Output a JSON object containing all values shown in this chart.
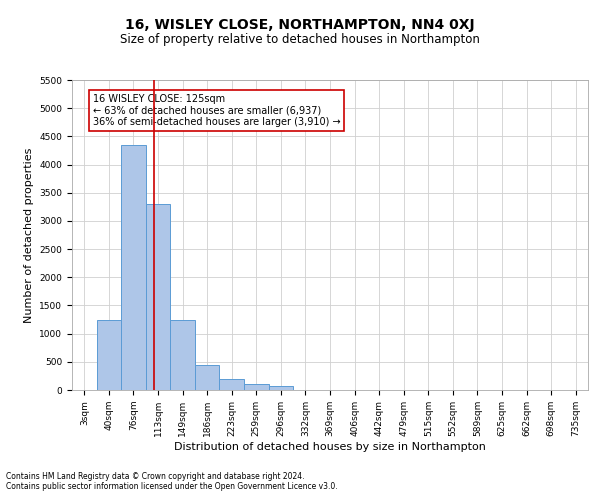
{
  "title": "16, WISLEY CLOSE, NORTHAMPTON, NN4 0XJ",
  "subtitle": "Size of property relative to detached houses in Northampton",
  "xlabel": "Distribution of detached houses by size in Northampton",
  "ylabel": "Number of detached properties",
  "footnote1": "Contains HM Land Registry data © Crown copyright and database right 2024.",
  "footnote2": "Contains public sector information licensed under the Open Government Licence v3.0.",
  "bar_categories": [
    "3sqm",
    "40sqm",
    "76sqm",
    "113sqm",
    "149sqm",
    "186sqm",
    "223sqm",
    "259sqm",
    "296sqm",
    "332sqm",
    "369sqm",
    "406sqm",
    "442sqm",
    "479sqm",
    "515sqm",
    "552sqm",
    "589sqm",
    "625sqm",
    "662sqm",
    "698sqm",
    "735sqm"
  ],
  "bar_values": [
    0,
    1250,
    4350,
    3300,
    1250,
    450,
    200,
    100,
    75,
    0,
    0,
    0,
    0,
    0,
    0,
    0,
    0,
    0,
    0,
    0,
    0
  ],
  "bar_color": "#aec6e8",
  "bar_edgecolor": "#5b9bd5",
  "ylim": [
    0,
    5500
  ],
  "yticks": [
    0,
    500,
    1000,
    1500,
    2000,
    2500,
    3000,
    3500,
    4000,
    4500,
    5000,
    5500
  ],
  "vline_x": 2.82,
  "vline_color": "#cc0000",
  "annotation_text": "16 WISLEY CLOSE: 125sqm\n← 63% of detached houses are smaller (6,937)\n36% of semi-detached houses are larger (3,910) →",
  "annotation_box_color": "#ffffff",
  "annotation_box_edgecolor": "#cc0000",
  "background_color": "#ffffff",
  "grid_color": "#d0d0d0",
  "title_fontsize": 10,
  "subtitle_fontsize": 8.5,
  "axis_label_fontsize": 8,
  "tick_fontsize": 6.5,
  "annotation_fontsize": 7,
  "footnote_fontsize": 5.5
}
